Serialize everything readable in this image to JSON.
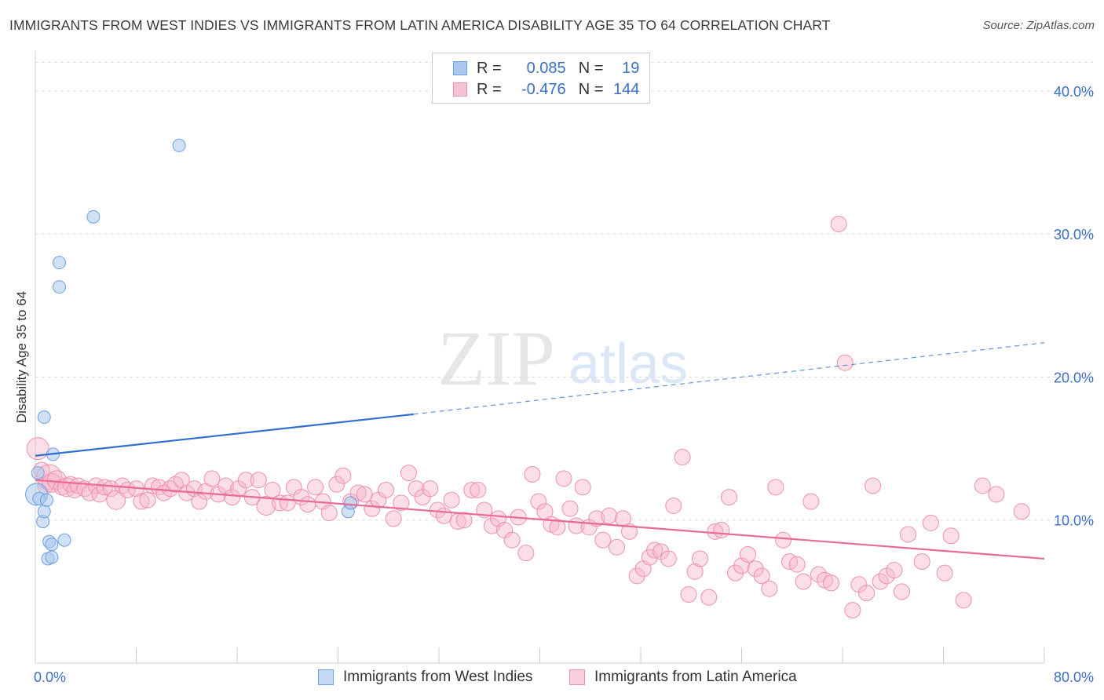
{
  "title": "IMMIGRANTS FROM WEST INDIES VS IMMIGRANTS FROM LATIN AMERICA DISABILITY AGE 35 TO 64 CORRELATION CHART",
  "source": "Source: ZipAtlas.com",
  "watermark": {
    "zip": "ZIP",
    "atlas": "atlas"
  },
  "legend": {
    "r_label": "R =",
    "n_label": "N =",
    "rows": [
      {
        "r": "0.085",
        "n": "19"
      },
      {
        "r": "-0.476",
        "n": "144"
      }
    ]
  },
  "colors": {
    "blue_fill": "#aac8ee",
    "blue_stroke": "#6f9fe0",
    "blue_line": "#2f6fcf",
    "pink_fill": "#f6b6ca",
    "pink_stroke": "#ee8fb0",
    "pink_line": "#e8699a",
    "tick_label": "#3b6fc6",
    "grid": "#dddddd"
  },
  "chart_data": {
    "type": "scatter",
    "title": "IMMIGRANTS FROM WEST INDIES VS IMMIGRANTS FROM LATIN AMERICA DISABILITY AGE 35 TO 64 CORRELATION CHART",
    "xlabel": "",
    "ylabel": "Disability Age 35 to 64",
    "xlim": [
      0,
      80
    ],
    "ylim": [
      0,
      42
    ],
    "x_tick_labels": [
      "0.0%",
      "80.0%"
    ],
    "y_ticks": [
      10,
      20,
      30,
      40
    ],
    "y_tick_labels": [
      "10.0%",
      "20.0%",
      "30.0%",
      "40.0%"
    ],
    "grid": true,
    "legend_position": "top-center",
    "series": [
      {
        "name": "Immigrants from West Indies",
        "R": 0.085,
        "N": 19,
        "trend": {
          "x": [
            0,
            30
          ],
          "y": [
            14.5,
            17.4
          ],
          "dashed_extension_to": [
            80,
            22.4
          ]
        },
        "points": [
          [
            0.1,
            11.8,
            14
          ],
          [
            0.2,
            13.3,
            8
          ],
          [
            0.3,
            11.5,
            8
          ],
          [
            0.6,
            9.9,
            8
          ],
          [
            0.7,
            10.6,
            8
          ],
          [
            0.7,
            17.2,
            8
          ],
          [
            0.9,
            11.4,
            8
          ],
          [
            1.0,
            7.3,
            8
          ],
          [
            1.1,
            8.5,
            8
          ],
          [
            1.3,
            8.3,
            8
          ],
          [
            1.3,
            7.4,
            8
          ],
          [
            1.4,
            14.6,
            8
          ],
          [
            1.9,
            26.3,
            8
          ],
          [
            1.9,
            28.0,
            8
          ],
          [
            2.3,
            8.6,
            8
          ],
          [
            4.6,
            31.2,
            8
          ],
          [
            11.4,
            36.2,
            8
          ],
          [
            24.8,
            10.6,
            8
          ],
          [
            25.0,
            11.2,
            8
          ]
        ]
      },
      {
        "name": "Immigrants from Latin America",
        "R": -0.476,
        "N": 144,
        "trend": {
          "x": [
            0,
            80
          ],
          "y": [
            12.8,
            7.3
          ]
        },
        "points": [
          [
            0.2,
            15.0,
            14
          ],
          [
            0.5,
            13.5,
            10
          ],
          [
            0.8,
            12.4,
            10
          ],
          [
            1.1,
            13.0,
            16
          ],
          [
            1.3,
            12.6,
            12
          ],
          [
            1.7,
            12.8,
            12
          ],
          [
            2.1,
            12.3,
            10
          ],
          [
            2.5,
            12.3,
            12
          ],
          [
            2.8,
            12.5,
            10
          ],
          [
            3.1,
            12.1,
            10
          ],
          [
            3.4,
            12.4,
            10
          ],
          [
            3.9,
            12.2,
            10
          ],
          [
            4.3,
            11.9,
            10
          ],
          [
            4.8,
            12.4,
            10
          ],
          [
            5.1,
            11.8,
            10
          ],
          [
            5.5,
            12.3,
            10
          ],
          [
            6.0,
            12.2,
            10
          ],
          [
            6.4,
            11.4,
            12
          ],
          [
            6.9,
            12.4,
            10
          ],
          [
            7.3,
            12.1,
            10
          ],
          [
            8.0,
            12.2,
            10
          ],
          [
            8.4,
            11.3,
            10
          ],
          [
            8.9,
            11.4,
            10
          ],
          [
            9.3,
            12.4,
            10
          ],
          [
            9.8,
            12.3,
            10
          ],
          [
            10.2,
            11.9,
            10
          ],
          [
            10.7,
            12.2,
            10
          ],
          [
            11.1,
            12.5,
            10
          ],
          [
            11.6,
            12.8,
            10
          ],
          [
            12.0,
            11.9,
            10
          ],
          [
            12.6,
            12.2,
            10
          ],
          [
            13.0,
            11.3,
            10
          ],
          [
            13.5,
            12.0,
            10
          ],
          [
            14.0,
            12.9,
            10
          ],
          [
            14.5,
            11.8,
            10
          ],
          [
            15.1,
            12.4,
            10
          ],
          [
            15.6,
            11.6,
            10
          ],
          [
            16.1,
            12.2,
            10
          ],
          [
            16.7,
            12.8,
            10
          ],
          [
            17.2,
            11.6,
            10
          ],
          [
            17.7,
            12.8,
            10
          ],
          [
            18.3,
            11.0,
            12
          ],
          [
            18.8,
            12.1,
            10
          ],
          [
            19.4,
            11.2,
            10
          ],
          [
            20.0,
            11.2,
            10
          ],
          [
            20.5,
            12.3,
            10
          ],
          [
            21.1,
            11.6,
            10
          ],
          [
            21.6,
            11.1,
            10
          ],
          [
            22.2,
            12.3,
            10
          ],
          [
            22.8,
            11.3,
            10
          ],
          [
            23.3,
            10.5,
            10
          ],
          [
            23.9,
            12.5,
            10
          ],
          [
            24.4,
            13.1,
            10
          ],
          [
            25.0,
            11.3,
            10
          ],
          [
            25.6,
            11.9,
            10
          ],
          [
            26.1,
            11.8,
            10
          ],
          [
            26.7,
            10.8,
            10
          ],
          [
            27.2,
            11.4,
            10
          ],
          [
            27.8,
            12.1,
            10
          ],
          [
            28.4,
            10.1,
            10
          ],
          [
            29.0,
            11.2,
            10
          ],
          [
            29.6,
            13.3,
            10
          ],
          [
            30.2,
            12.2,
            10
          ],
          [
            30.7,
            11.6,
            10
          ],
          [
            31.3,
            12.2,
            10
          ],
          [
            31.9,
            10.7,
            10
          ],
          [
            32.4,
            10.3,
            10
          ],
          [
            33.0,
            11.4,
            10
          ],
          [
            33.5,
            9.9,
            10
          ],
          [
            34.0,
            10.0,
            10
          ],
          [
            34.6,
            12.1,
            10
          ],
          [
            35.1,
            12.1,
            10
          ],
          [
            35.6,
            10.7,
            10
          ],
          [
            36.2,
            9.6,
            10
          ],
          [
            36.7,
            10.1,
            10
          ],
          [
            37.2,
            9.3,
            10
          ],
          [
            37.8,
            8.6,
            10
          ],
          [
            38.3,
            10.2,
            10
          ],
          [
            38.9,
            7.7,
            10
          ],
          [
            39.4,
            13.2,
            10
          ],
          [
            39.9,
            11.3,
            10
          ],
          [
            40.4,
            10.6,
            10
          ],
          [
            40.9,
            9.7,
            10
          ],
          [
            41.4,
            9.5,
            10
          ],
          [
            41.9,
            12.9,
            10
          ],
          [
            42.4,
            10.8,
            10
          ],
          [
            42.9,
            9.6,
            10
          ],
          [
            43.4,
            12.3,
            10
          ],
          [
            43.9,
            9.5,
            10
          ],
          [
            44.5,
            10.1,
            10
          ],
          [
            45.0,
            8.6,
            10
          ],
          [
            45.5,
            10.3,
            10
          ],
          [
            46.1,
            8.1,
            10
          ],
          [
            46.6,
            10.1,
            10
          ],
          [
            47.1,
            9.2,
            10
          ],
          [
            47.7,
            6.1,
            10
          ],
          [
            48.2,
            6.6,
            10
          ],
          [
            48.7,
            7.4,
            10
          ],
          [
            49.1,
            7.9,
            10
          ],
          [
            49.6,
            7.8,
            10
          ],
          [
            50.2,
            7.3,
            10
          ],
          [
            50.6,
            11.0,
            10
          ],
          [
            51.3,
            14.4,
            10
          ],
          [
            51.8,
            4.8,
            10
          ],
          [
            52.3,
            6.4,
            10
          ],
          [
            52.7,
            7.3,
            10
          ],
          [
            53.4,
            4.6,
            10
          ],
          [
            53.9,
            9.2,
            10
          ],
          [
            54.4,
            9.3,
            10
          ],
          [
            55.0,
            11.6,
            10
          ],
          [
            55.5,
            6.3,
            10
          ],
          [
            56.0,
            6.8,
            10
          ],
          [
            56.5,
            7.6,
            10
          ],
          [
            57.1,
            6.6,
            10
          ],
          [
            57.6,
            6.1,
            10
          ],
          [
            58.2,
            5.2,
            10
          ],
          [
            58.7,
            12.3,
            10
          ],
          [
            59.3,
            8.6,
            10
          ],
          [
            59.8,
            7.1,
            10
          ],
          [
            60.4,
            6.9,
            10
          ],
          [
            60.9,
            5.7,
            10
          ],
          [
            61.5,
            11.3,
            10
          ],
          [
            62.1,
            6.2,
            10
          ],
          [
            62.6,
            5.8,
            10
          ],
          [
            63.1,
            5.6,
            10
          ],
          [
            63.7,
            30.7,
            10
          ],
          [
            64.2,
            21.0,
            10
          ],
          [
            64.8,
            3.7,
            10
          ],
          [
            65.3,
            5.5,
            10
          ],
          [
            65.9,
            4.9,
            10
          ],
          [
            66.4,
            12.4,
            10
          ],
          [
            67.0,
            5.7,
            10
          ],
          [
            67.5,
            6.1,
            10
          ],
          [
            68.1,
            6.5,
            10
          ],
          [
            68.7,
            5.0,
            10
          ],
          [
            69.2,
            9.0,
            10
          ],
          [
            70.3,
            7.1,
            10
          ],
          [
            71.0,
            9.8,
            10
          ],
          [
            72.1,
            6.3,
            10
          ],
          [
            72.6,
            8.9,
            10
          ],
          [
            73.6,
            4.4,
            10
          ],
          [
            75.1,
            12.4,
            10
          ],
          [
            76.2,
            11.8,
            10
          ],
          [
            78.2,
            10.6,
            10
          ]
        ]
      }
    ]
  },
  "bottom_legend": {
    "items": [
      "Immigrants from West Indies",
      "Immigrants from Latin America"
    ]
  }
}
